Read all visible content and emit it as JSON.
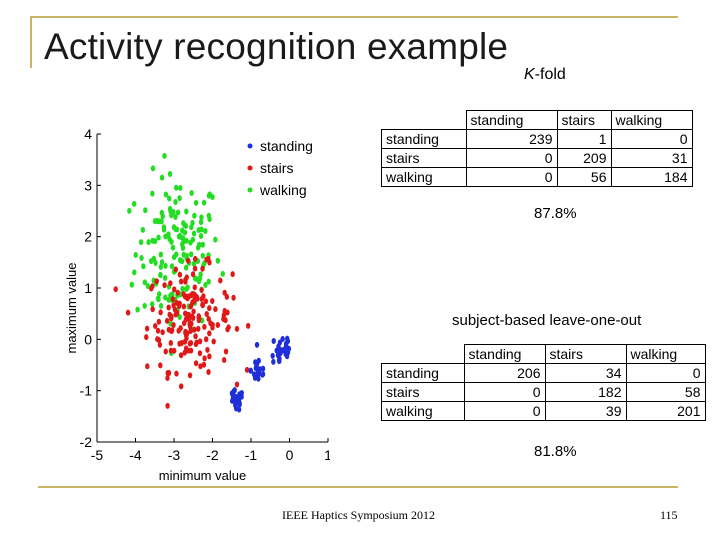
{
  "slide": {
    "title": "Activity recognition example",
    "subtitle_k": "K",
    "subtitle_rest": "-fold",
    "footer": "IEEE Haptics Symposium 2012",
    "page_number": "115",
    "accent_color": "#c8b568"
  },
  "kfold": {
    "headers": [
      "standing",
      "stairs",
      "walking"
    ],
    "rows": [
      {
        "label": "standing",
        "values": [
          "239",
          "1",
          "0"
        ]
      },
      {
        "label": "stairs",
        "values": [
          "0",
          "209",
          "31"
        ]
      },
      {
        "label": "walking",
        "values": [
          "0",
          "56",
          "184"
        ]
      }
    ],
    "accuracy": "87.8%"
  },
  "loo": {
    "method_label": "subject-based leave-one-out",
    "headers": [
      "standing",
      "stairs",
      "walking"
    ],
    "rows": [
      {
        "label": "standing",
        "values": [
          "206",
          "34",
          "0"
        ]
      },
      {
        "label": "stairs",
        "values": [
          "0",
          "182",
          "58"
        ]
      },
      {
        "label": "walking",
        "values": [
          "0",
          "39",
          "201"
        ]
      }
    ],
    "accuracy": "81.8%"
  },
  "chart_data": {
    "type": "scatter",
    "title": "",
    "xlabel": "minimum value",
    "ylabel": "maximum value",
    "xlim": [
      -5,
      1
    ],
    "ylim": [
      -2,
      4
    ],
    "xticks": [
      "-5",
      "-4",
      "-3",
      "-2",
      "-1",
      "0",
      "1"
    ],
    "yticks": [
      "-2",
      "-1",
      "0",
      "1",
      "2",
      "3",
      "4"
    ],
    "legend_position": "top-right",
    "series": [
      {
        "name": "standing",
        "color": "#1f2fd8",
        "clusters": [
          {
            "cx": -0.2,
            "cy": -0.2,
            "sx": 0.15,
            "sy": 0.2,
            "n": 25
          },
          {
            "cx": -0.8,
            "cy": -0.6,
            "sx": 0.1,
            "sy": 0.15,
            "n": 20
          },
          {
            "cx": -1.4,
            "cy": -1.2,
            "sx": 0.1,
            "sy": 0.1,
            "n": 25
          }
        ]
      },
      {
        "name": "stairs",
        "color": "#e01818",
        "clusters": [
          {
            "cx": -2.6,
            "cy": 0.4,
            "sx": 0.55,
            "sy": 0.5,
            "n": 170
          }
        ]
      },
      {
        "name": "walking",
        "color": "#22dd22",
        "clusters": [
          {
            "cx": -2.9,
            "cy": 1.7,
            "sx": 0.55,
            "sy": 0.75,
            "n": 160
          }
        ]
      }
    ]
  }
}
